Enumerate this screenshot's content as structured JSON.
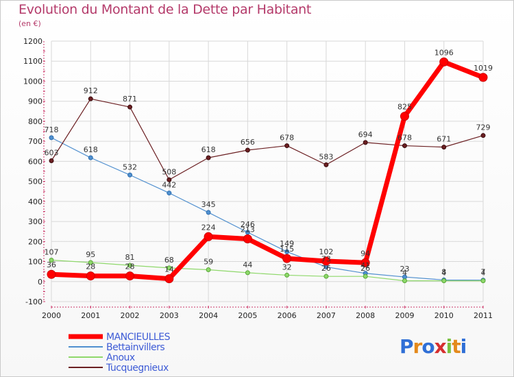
{
  "title": "Evolution du Montant de la Dette par Habitant",
  "subtitle": "(en €)",
  "logo_text": "Proxiti",
  "chart_data": {
    "type": "line",
    "title": "Evolution du Montant de la Dette par Habitant",
    "subtitle": "(en €)",
    "x": [
      "2000",
      "2001",
      "2002",
      "2003",
      "2004",
      "2005",
      "2006",
      "2007",
      "2008",
      "2009",
      "2010",
      "2011"
    ],
    "ylim": [
      -100,
      1200
    ],
    "yticks": [
      -100,
      0,
      100,
      200,
      300,
      400,
      500,
      600,
      700,
      800,
      900,
      1000,
      1100,
      1200
    ],
    "grid": true,
    "legend_position": "bottom-left",
    "series": [
      {
        "name": "MANCIEULLES",
        "color": "#ff0000",
        "values": [
          36,
          28,
          28,
          14,
          224,
          213,
          115,
          102,
          94,
          825,
          1096,
          1019
        ]
      },
      {
        "name": "Bettainvillers",
        "color": "#4f8fcf",
        "values": [
          718,
          618,
          532,
          442,
          345,
          246,
          149,
          73,
          41,
          23,
          8,
          7
        ]
      },
      {
        "name": "Anoux",
        "color": "#8ed86a",
        "values": [
          107,
          95,
          81,
          68,
          59,
          44,
          32,
          26,
          26,
          4,
          4,
          4
        ]
      },
      {
        "name": "Tucquegnieux",
        "color": "#6b1f22",
        "values": [
          603,
          912,
          871,
          508,
          618,
          656,
          678,
          583,
          694,
          678,
          671,
          729
        ]
      }
    ],
    "labels": [
      [
        "36",
        "28",
        "28",
        "14",
        "224",
        "213",
        "115",
        "102",
        "94",
        "825",
        "1096",
        "1019"
      ],
      [
        "718",
        "618",
        "532",
        "442",
        "345",
        "246",
        "149",
        "73",
        "41",
        "23",
        "8",
        "7"
      ],
      [
        "107",
        "95",
        "81",
        "68",
        "59",
        "44",
        "32",
        "26",
        "26",
        "4",
        "4",
        "4"
      ],
      [
        "603",
        "912",
        "871",
        "508",
        "618",
        "656",
        "678",
        "583",
        "694",
        "678",
        "671",
        "729"
      ]
    ]
  }
}
